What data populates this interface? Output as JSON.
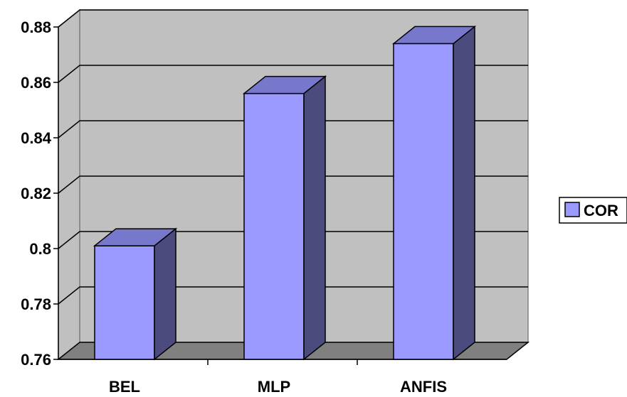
{
  "chart_data": {
    "type": "bar",
    "categories": [
      "BEL",
      "MLP",
      "ANFIS"
    ],
    "series": [
      {
        "name": "COR",
        "values": [
          0.801,
          0.856,
          0.874
        ]
      }
    ],
    "ylim": [
      0.76,
      0.88
    ],
    "yticks": [
      "0.76",
      "0.78",
      "0.8",
      "0.82",
      "0.84",
      "0.86",
      "0.88"
    ],
    "grid": true,
    "legend": "right",
    "style": "3d-column",
    "colors": {
      "bar_front": "#9999ff",
      "bar_top": "#7777cc",
      "bar_side": "#4b4b7e",
      "wall": "#c0c0c0",
      "floor": "#808080"
    }
  }
}
